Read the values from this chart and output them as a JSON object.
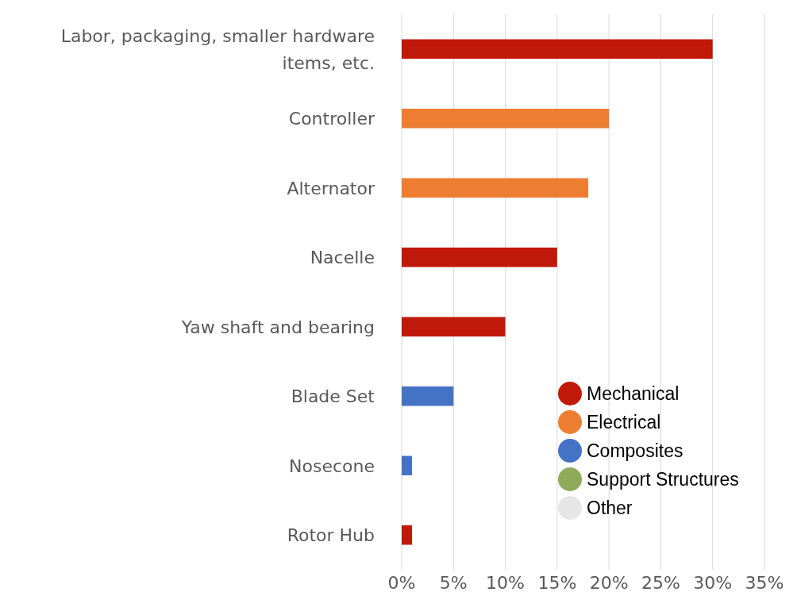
{
  "chart_data": {
    "type": "bar",
    "orientation": "horizontal",
    "stacked": true,
    "categories": [
      "Labor, packaging, smaller hardware items, etc.",
      "Controller",
      "Alternator",
      "Nacelle",
      "Yaw shaft and bearing",
      "Blade Set",
      "Nosecone",
      "Rotor Hub"
    ],
    "series": [
      {
        "name": "Mechanical",
        "color": "#c0190a",
        "values": [
          30,
          null,
          null,
          15,
          10,
          null,
          null,
          1
        ]
      },
      {
        "name": "Electrical",
        "color": "#ed7d31",
        "values": [
          null,
          20,
          18,
          null,
          null,
          null,
          null,
          null
        ]
      },
      {
        "name": "Composites",
        "color": "#4472c4",
        "values": [
          null,
          null,
          null,
          null,
          null,
          5,
          1,
          null
        ]
      },
      {
        "name": "Support Structures",
        "color": "#8faa5a",
        "values": [
          null,
          null,
          null,
          null,
          null,
          null,
          null,
          null
        ]
      },
      {
        "name": "Other",
        "color": "#e6e6e6",
        "values": [
          null,
          null,
          null,
          null,
          null,
          null,
          null,
          null
        ]
      }
    ],
    "xlim": [
      0,
      35
    ],
    "xticks": [
      {
        "value": 0,
        "label": "0%"
      },
      {
        "value": 5,
        "label": "5%"
      },
      {
        "value": 10,
        "label": "10%"
      },
      {
        "value": 15,
        "label": "15%"
      },
      {
        "value": 20,
        "label": "20%"
      },
      {
        "value": 25,
        "label": "25%"
      },
      {
        "value": 30,
        "label": "30%"
      },
      {
        "value": 35,
        "label": "35%"
      }
    ],
    "grid": "x",
    "legend": "bottom right"
  }
}
